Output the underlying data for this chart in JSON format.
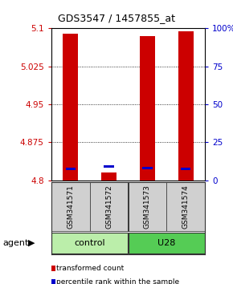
{
  "title": "GDS3547 / 1457855_at",
  "samples": [
    "GSM341571",
    "GSM341572",
    "GSM341573",
    "GSM341574"
  ],
  "red_values": [
    5.09,
    4.815,
    5.085,
    5.095
  ],
  "blue_values": [
    4.822,
    4.827,
    4.824,
    4.822
  ],
  "ylim_left": [
    4.8,
    5.1
  ],
  "ylim_right": [
    0,
    100
  ],
  "left_ticks": [
    4.8,
    4.875,
    4.95,
    5.025,
    5.1
  ],
  "right_ticks": [
    0,
    25,
    50,
    75,
    100
  ],
  "right_tick_labels": [
    "0",
    "25",
    "50",
    "75",
    "100%"
  ],
  "groups": [
    {
      "label": "control",
      "cols": [
        0,
        1
      ],
      "color": "#bbeeaa"
    },
    {
      "label": "U28",
      "cols": [
        2,
        3
      ],
      "color": "#55cc55"
    }
  ],
  "bar_color": "#cc0000",
  "dot_color": "#0000cc",
  "bar_width": 0.4,
  "background_color": "#ffffff",
  "agent_label": "agent",
  "legend_items": [
    {
      "color": "#cc0000",
      "label": "transformed count"
    },
    {
      "color": "#0000cc",
      "label": "percentile rank within the sample"
    }
  ]
}
